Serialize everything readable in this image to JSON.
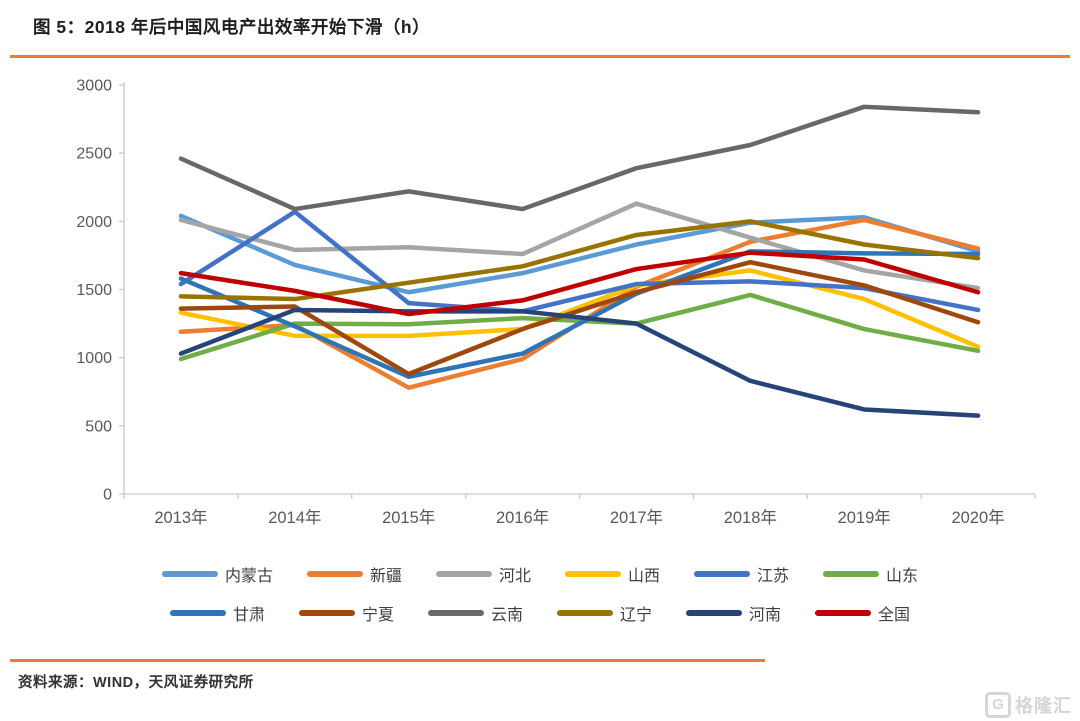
{
  "header": {
    "title": "图 5：2018 年后中国风电产出效率开始下滑（h）"
  },
  "footer": {
    "source_label": "资料来源：WIND，天风证券研究所"
  },
  "watermark": {
    "icon": "G",
    "brand": "格隆汇"
  },
  "colors": {
    "accent_rule": "#ED7D31",
    "axis_line": "#C9C9C9",
    "axis_text": "#595959",
    "legend_text": "#404040"
  },
  "chart_data": {
    "type": "line",
    "title": "2018 年后中国风电产出效率开始下滑（h）",
    "unit": "h",
    "categories": [
      "2013年",
      "2014年",
      "2015年",
      "2016年",
      "2017年",
      "2018年",
      "2019年",
      "2020年"
    ],
    "ylim": [
      0,
      3000
    ],
    "yticks": [
      0,
      500,
      1000,
      1500,
      2000,
      2500,
      3000
    ],
    "grid": false,
    "legend_position": "bottom",
    "legend_rows": [
      [
        0,
        1,
        2,
        3,
        4,
        5
      ],
      [
        6,
        7,
        8,
        9,
        10,
        11
      ]
    ],
    "series": [
      {
        "name": "内蒙古",
        "color": "#5B9BD5",
        "values": [
          2040,
          1680,
          1480,
          1620,
          1830,
          1990,
          2030,
          1780
        ]
      },
      {
        "name": "新疆",
        "color": "#ED7D31",
        "values": [
          1190,
          1240,
          780,
          990,
          1520,
          1850,
          2010,
          1800
        ]
      },
      {
        "name": "河北",
        "color": "#A5A5A5",
        "values": [
          2010,
          1790,
          1810,
          1760,
          2130,
          1880,
          1640,
          1510
        ]
      },
      {
        "name": "山西",
        "color": "#FFC000",
        "values": [
          1330,
          1160,
          1160,
          1210,
          1530,
          1640,
          1430,
          1080
        ]
      },
      {
        "name": "江苏",
        "color": "#4472C4",
        "values": [
          1540,
          2070,
          1400,
          1340,
          1540,
          1560,
          1510,
          1350
        ]
      },
      {
        "name": "山东",
        "color": "#70AD47",
        "values": [
          990,
          1250,
          1245,
          1290,
          1250,
          1460,
          1210,
          1050
        ]
      },
      {
        "name": "甘肃",
        "color": "#2E75B6",
        "values": [
          1580,
          1230,
          860,
          1030,
          1470,
          1780,
          1765,
          1760
        ]
      },
      {
        "name": "宁夏",
        "color": "#9E480E",
        "values": [
          1360,
          1375,
          880,
          1210,
          1480,
          1700,
          1530,
          1260
        ]
      },
      {
        "name": "云南",
        "color": "#686868",
        "values": [
          2460,
          2090,
          2220,
          2090,
          2390,
          2560,
          2840,
          2800
        ]
      },
      {
        "name": "辽宁",
        "color": "#997300",
        "values": [
          1450,
          1430,
          1550,
          1670,
          1900,
          2000,
          1830,
          1730
        ]
      },
      {
        "name": "河南",
        "color": "#264478",
        "values": [
          1030,
          1350,
          1340,
          1340,
          1250,
          830,
          620,
          575
        ]
      },
      {
        "name": "全国",
        "color": "#C00000",
        "values": [
          1620,
          1490,
          1320,
          1420,
          1650,
          1770,
          1720,
          1480
        ]
      }
    ]
  }
}
